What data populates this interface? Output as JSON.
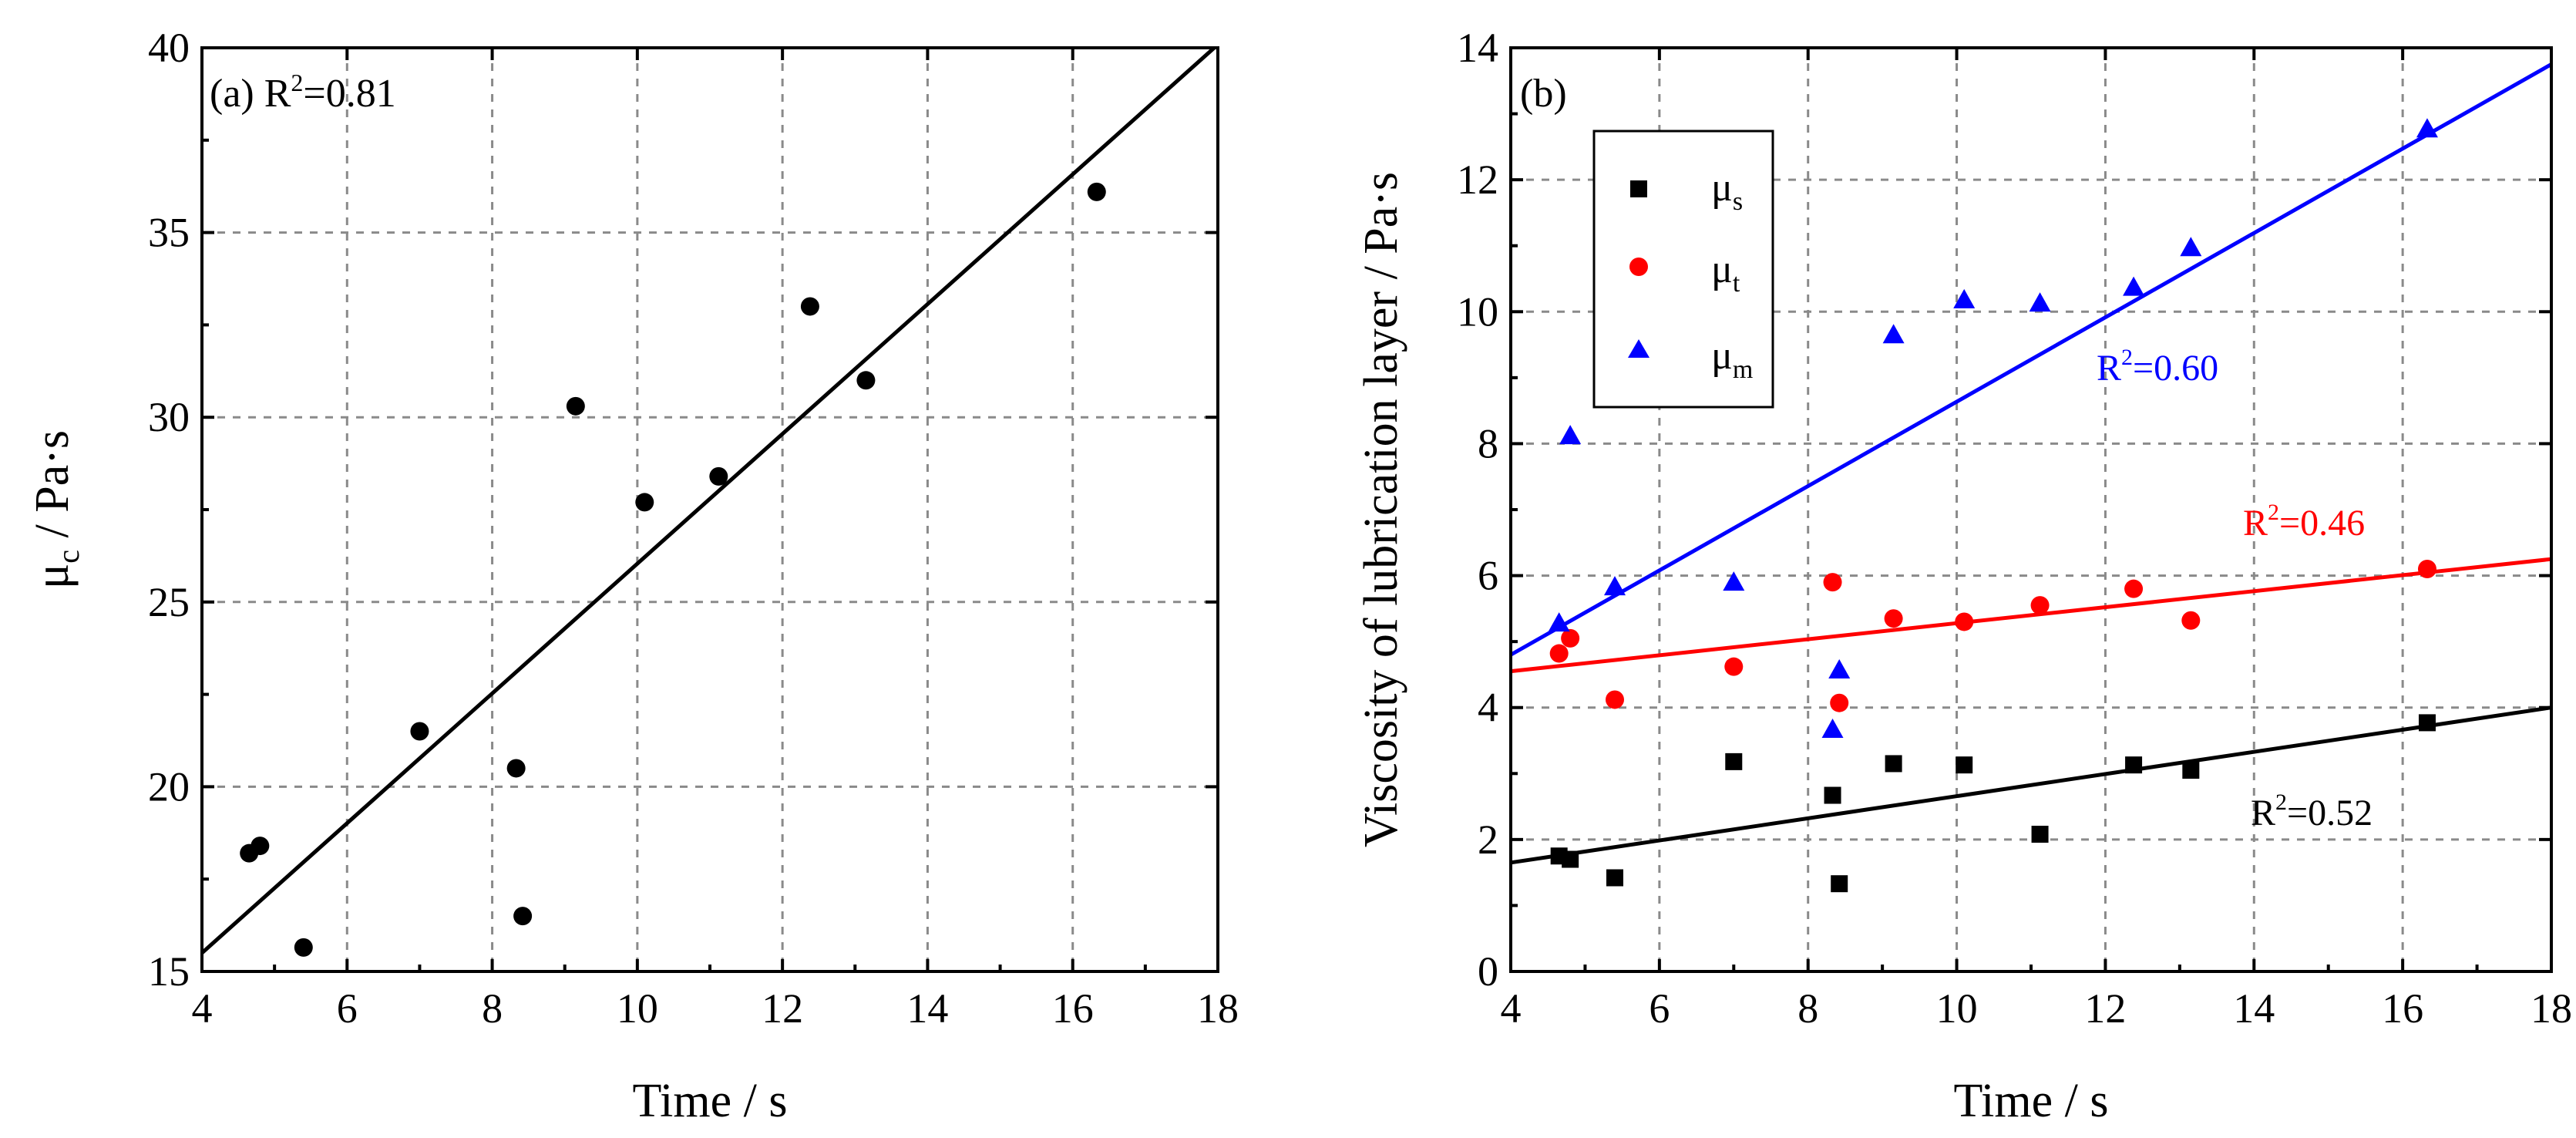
{
  "chart_data": [
    {
      "id": "a",
      "type": "scatter",
      "panel_label": "(a)",
      "r2_text": "R",
      "r2_value": "=0.81",
      "xlabel": "Time / s",
      "ylabel_main": "μ",
      "ylabel_sub": "c",
      "ylabel_rest": " / Pa·s",
      "xlim": [
        4,
        18
      ],
      "ylim": [
        15,
        40
      ],
      "xticks": [
        4,
        6,
        8,
        10,
        12,
        14,
        16,
        18
      ],
      "yticks": [
        15,
        20,
        25,
        30,
        35,
        40
      ],
      "grid": true,
      "series": [
        {
          "name": "μc",
          "color": "#000000",
          "marker": "circle",
          "x": [
            4.65,
            4.8,
            5.4,
            7.0,
            8.33,
            8.42,
            9.15,
            10.1,
            11.12,
            12.38,
            13.15,
            16.33
          ],
          "y": [
            18.2,
            18.4,
            15.65,
            21.5,
            20.5,
            16.5,
            30.3,
            27.7,
            28.4,
            33.0,
            31.0,
            36.1
          ],
          "fit": [
            [
              4,
              15.5
            ],
            [
              17.95,
              40.0
            ]
          ]
        }
      ]
    },
    {
      "id": "b",
      "type": "scatter",
      "panel_label": "(b)",
      "xlabel": "Time / s",
      "ylabel": "Viscosity of lubrication layer / Pa·s",
      "xlim": [
        4,
        18
      ],
      "ylim": [
        0,
        14
      ],
      "xticks": [
        4,
        6,
        8,
        10,
        12,
        14,
        16,
        18
      ],
      "yticks": [
        0,
        2,
        4,
        6,
        8,
        10,
        12,
        14
      ],
      "grid": true,
      "legend_position": "top-left",
      "series": [
        {
          "name": "μs",
          "legend_main": "μ",
          "legend_sub": "s",
          "color": "#000000",
          "marker": "square",
          "x": [
            4.65,
            4.8,
            5.4,
            7.0,
            8.33,
            8.42,
            9.15,
            10.1,
            11.12,
            12.38,
            13.15,
            16.33
          ],
          "y": [
            1.75,
            1.7,
            1.42,
            3.18,
            2.67,
            1.33,
            3.15,
            3.13,
            2.08,
            3.13,
            3.05,
            3.77
          ],
          "fit": [
            [
              4,
              1.65
            ],
            [
              18,
              4.0
            ]
          ],
          "r2_text": "R",
          "r2_value": "=0.52"
        },
        {
          "name": "μt",
          "legend_main": "μ",
          "legend_sub": "t",
          "color": "#ff0000",
          "marker": "circle",
          "x": [
            4.65,
            4.8,
            5.4,
            7.0,
            8.33,
            8.42,
            9.15,
            10.1,
            11.12,
            12.38,
            13.15,
            16.33
          ],
          "y": [
            4.82,
            5.05,
            4.12,
            4.62,
            5.9,
            4.07,
            5.35,
            5.3,
            5.55,
            5.8,
            5.32,
            6.1
          ],
          "fit": [
            [
              4,
              4.55
            ],
            [
              18,
              6.25
            ]
          ],
          "r2_text": "R",
          "r2_value": "=0.46"
        },
        {
          "name": "μm",
          "legend_main": "μ",
          "legend_sub": "m",
          "color": "#0000ff",
          "marker": "triangle",
          "x": [
            4.65,
            4.8,
            5.4,
            7.0,
            8.33,
            8.42,
            9.15,
            10.1,
            11.12,
            12.38,
            13.15,
            16.33
          ],
          "y": [
            5.28,
            8.12,
            5.83,
            5.9,
            3.67,
            4.57,
            9.65,
            10.18,
            10.13,
            10.37,
            10.97,
            12.77
          ],
          "fit": [
            [
              4,
              4.8
            ],
            [
              18,
              13.75
            ]
          ],
          "r2_text": "R",
          "r2_value": "=0.60"
        }
      ]
    }
  ]
}
